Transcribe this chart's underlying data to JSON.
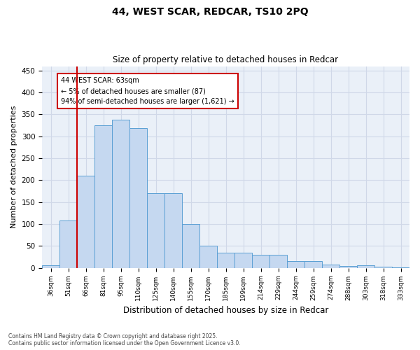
{
  "title_line1": "44, WEST SCAR, REDCAR, TS10 2PQ",
  "title_line2": "Size of property relative to detached houses in Redcar",
  "xlabel": "Distribution of detached houses by size in Redcar",
  "ylabel": "Number of detached properties",
  "categories": [
    "36sqm",
    "51sqm",
    "66sqm",
    "81sqm",
    "95sqm",
    "110sqm",
    "125sqm",
    "140sqm",
    "155sqm",
    "170sqm",
    "185sqm",
    "199sqm",
    "214sqm",
    "229sqm",
    "244sqm",
    "259sqm",
    "274sqm",
    "288sqm",
    "303sqm",
    "318sqm",
    "333sqm"
  ],
  "values": [
    5,
    108,
    210,
    325,
    338,
    318,
    170,
    170,
    100,
    50,
    35,
    35,
    29,
    29,
    15,
    15,
    8,
    4,
    6,
    2,
    1
  ],
  "bar_color": "#c5d8f0",
  "bar_edge_color": "#5a9fd4",
  "grid_color": "#d0d8e8",
  "background_color": "#eaf0f8",
  "vline_x": 1.5,
  "vline_color": "#cc0000",
  "annotation_text": "44 WEST SCAR: 63sqm\n← 5% of detached houses are smaller (87)\n94% of semi-detached houses are larger (1,621) →",
  "annotation_box_color": "#cc0000",
  "ylim": [
    0,
    460
  ],
  "yticks": [
    0,
    50,
    100,
    150,
    200,
    250,
    300,
    350,
    400,
    450
  ],
  "footnote_line1": "Contains HM Land Registry data © Crown copyright and database right 2025.",
  "footnote_line2": "Contains public sector information licensed under the Open Government Licence v3.0."
}
